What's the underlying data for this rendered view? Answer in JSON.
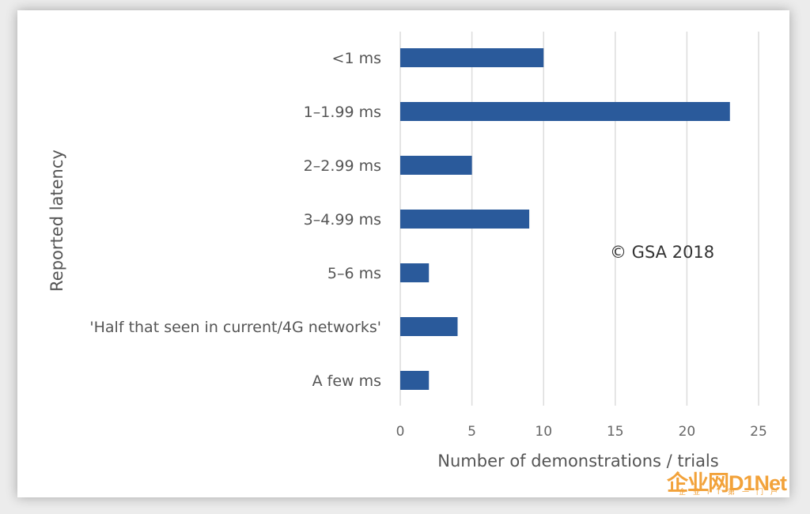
{
  "chart_data": {
    "type": "bar",
    "orientation": "horizontal",
    "categories": [
      "<1 ms",
      "1–1.99 ms",
      "2–2.99 ms",
      "3–4.99 ms",
      "5–6 ms",
      "'Half that seen in current/4G networks'",
      "A few ms"
    ],
    "values": [
      10,
      23,
      5,
      9,
      2,
      4,
      2
    ],
    "xlabel": "Number of demonstrations / trials",
    "ylabel": "Reported latency",
    "xlim": [
      0,
      25
    ],
    "xticks": [
      0,
      5,
      10,
      15,
      20,
      25
    ],
    "grid": "vertical",
    "bar_color": "#2a5a9b",
    "annotation": "© GSA 2018"
  },
  "watermark": {
    "text": "企业网D1Net",
    "subtext": "企业IT第一门户"
  }
}
